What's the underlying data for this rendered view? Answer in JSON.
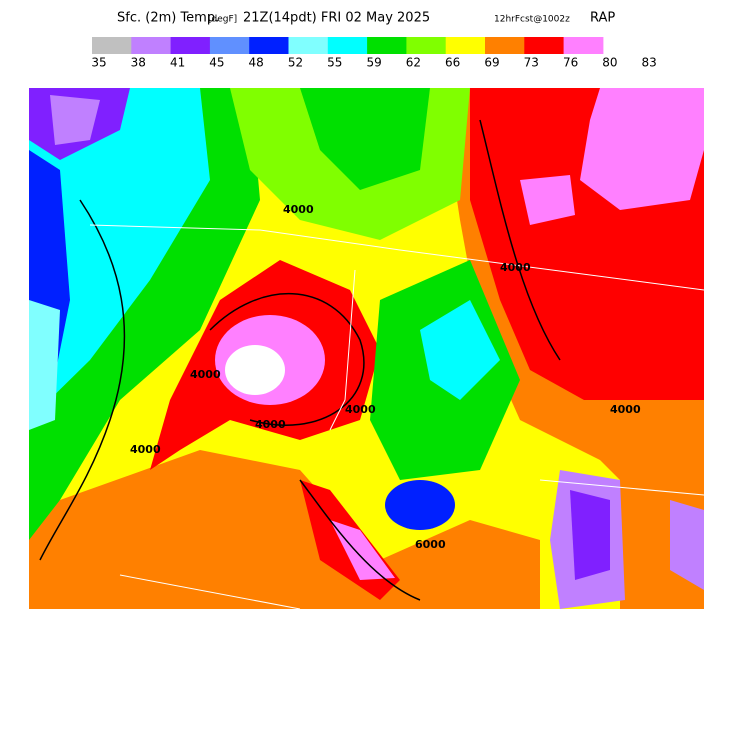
{
  "header": {
    "title": "Sfc. (2m) Temp.",
    "units": "[degF]",
    "valid_time": "21Z(14pdt) FRI 02 May 2025",
    "forecast": "12hrFcst@1002z",
    "model": "RAP"
  },
  "colorbar": {
    "colors": [
      "#c0c0c0",
      "#c080ff",
      "#8020ff",
      "#6090ff",
      "#0020ff",
      "#80ffff",
      "#00ffff",
      "#00e000",
      "#80ff00",
      "#ffff00",
      "#ff8000",
      "#ff0000",
      "#ff80ff"
    ],
    "labels": [
      35,
      38,
      41,
      45,
      48,
      52,
      55,
      59,
      62,
      66,
      69,
      73,
      76,
      80,
      83
    ]
  },
  "contour_labels": [
    "4000",
    "4000",
    "4000",
    "4000",
    "4000",
    "4000",
    "4000",
    "6000"
  ]
}
